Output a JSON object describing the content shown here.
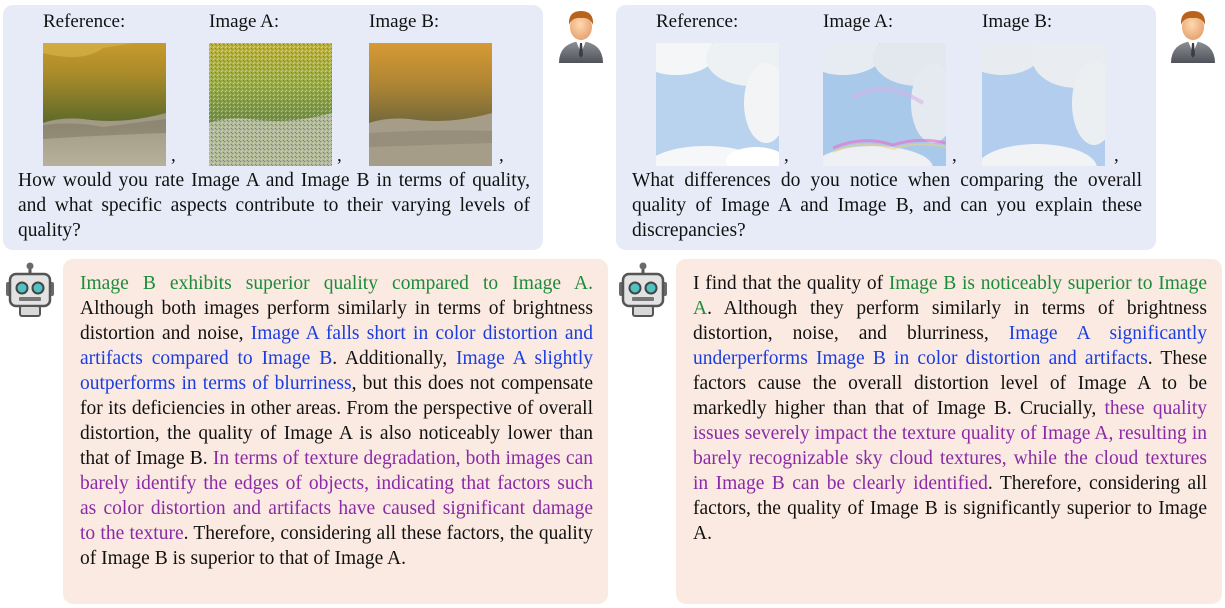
{
  "panels": [
    {
      "labels": {
        "reference": "Reference:",
        "image_a": "Image A:",
        "image_b": "Image B:"
      },
      "commas": [
        ",",
        ",",
        ","
      ],
      "question": "How would you rate Image A and Image B in terms of quality, and what specific aspects contribute to their varying levels of quality?",
      "answer": [
        {
          "text": "Image B exhibits superior quality compared to Image A.",
          "color": "green"
        },
        {
          "text": " Although both images perform similarly in terms of brightness distortion and noise, ",
          "color": "black"
        },
        {
          "text": "Image A falls short in color distortion and artifacts compared to Image B",
          "color": "blue"
        },
        {
          "text": ". Additionally, ",
          "color": "black"
        },
        {
          "text": "Image A slightly outperforms in terms of blurriness",
          "color": "blue"
        },
        {
          "text": ", but this does not compensate for its deficiencies in other areas. From the perspective of overall distortion, the quality of Image A is also noticeably lower than that of Image B. ",
          "color": "black"
        },
        {
          "text": "In terms of texture degradation, both images can barely identify the edges of objects, indicating that factors such as color distortion and artifacts have caused significant damage to the texture",
          "color": "purple"
        },
        {
          "text": ". Therefore, considering all these factors, the quality of Image B is superior to that of Image A.",
          "color": "black"
        }
      ]
    },
    {
      "labels": {
        "reference": "Reference:",
        "image_a": "Image A:",
        "image_b": "Image B:"
      },
      "commas": [
        ",",
        ",",
        ","
      ],
      "question": "What differences do you notice when comparing the overall quality of Image A and Image B, and can you explain these discrepancies?",
      "answer": [
        {
          "text": "I find that the quality of ",
          "color": "black"
        },
        {
          "text": "Image B is noticeably superior to Image A",
          "color": "green"
        },
        {
          "text": ". Although they perform similarly in terms of brightness distortion, noise, and blurriness, ",
          "color": "black"
        },
        {
          "text": "Image A significantly underperforms Image B in color distortion and artifacts",
          "color": "blue"
        },
        {
          "text": ". These factors cause the overall distortion level of Image A to be markedly higher than that of Image B. Crucially, ",
          "color": "black"
        },
        {
          "text": "these quality issues severely impact the texture quality of Image A, resulting in barely recognizable sky cloud textures, while the cloud textures in Image B can be clearly identified",
          "color": "purple"
        },
        {
          "text": ". Therefore, considering all factors, the quality of Image B is significantly superior to Image A.",
          "color": "black"
        }
      ]
    }
  ],
  "colors": {
    "question_bg": "#e6ebf7",
    "answer_bg": "#fbeae1",
    "green": "#1c8b3a",
    "blue": "#1a3de0",
    "purple": "#8a2aa8"
  },
  "icons": {
    "user": "user-avatar-icon",
    "robot": "robot-icon"
  }
}
